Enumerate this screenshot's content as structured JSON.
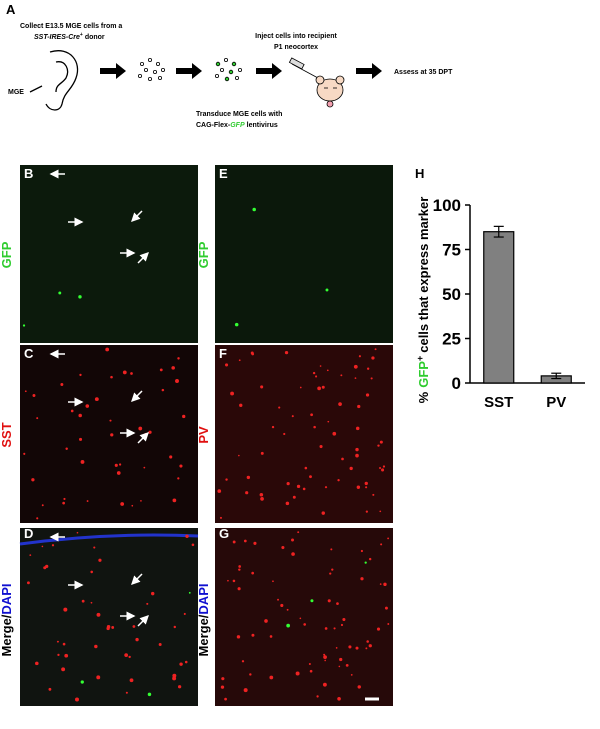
{
  "panels": {
    "a": "A",
    "b": "B",
    "c": "C",
    "d": "D",
    "e": "E",
    "f": "F",
    "g": "G",
    "h": "H"
  },
  "schematic": {
    "collect": {
      "line1": "Collect E13.5 MGE cells from a",
      "line2_italic": "SST-IRES-Cre",
      "line2_sup": "+",
      "line2_rest": "donor"
    },
    "mge_label": "MGE",
    "transduce": {
      "line1": "Transduce MGE cells with",
      "line2_prefix": "CAG-Flex-",
      "line2_gfp": "GFP",
      "line2_rest": "lentivirus"
    },
    "inject": {
      "line1": "Inject cells into recipient",
      "line2": "P1 neocortex"
    },
    "assess": "Assess at 35 DPT"
  },
  "micrographs": {
    "b": "GFP",
    "c": "SST",
    "d": {
      "merge": "Merge",
      "slash": "/",
      "dapi": "DAPI"
    },
    "e": "GFP",
    "f": "PV",
    "g": {
      "merge": "Merge",
      "slash": "/",
      "dapi": "DAPI"
    }
  },
  "chart_data": {
    "type": "bar",
    "y_label": {
      "percent": "%",
      "marker": "GFP",
      "sup": "+",
      "rest": "cells that express marker"
    },
    "categories": [
      "SST",
      "PV"
    ],
    "values": [
      85,
      4
    ],
    "errors": [
      3,
      1.5
    ],
    "color": "#808080",
    "ylim": [
      0,
      100
    ],
    "yticks": [
      0,
      25,
      50,
      75,
      100
    ]
  }
}
